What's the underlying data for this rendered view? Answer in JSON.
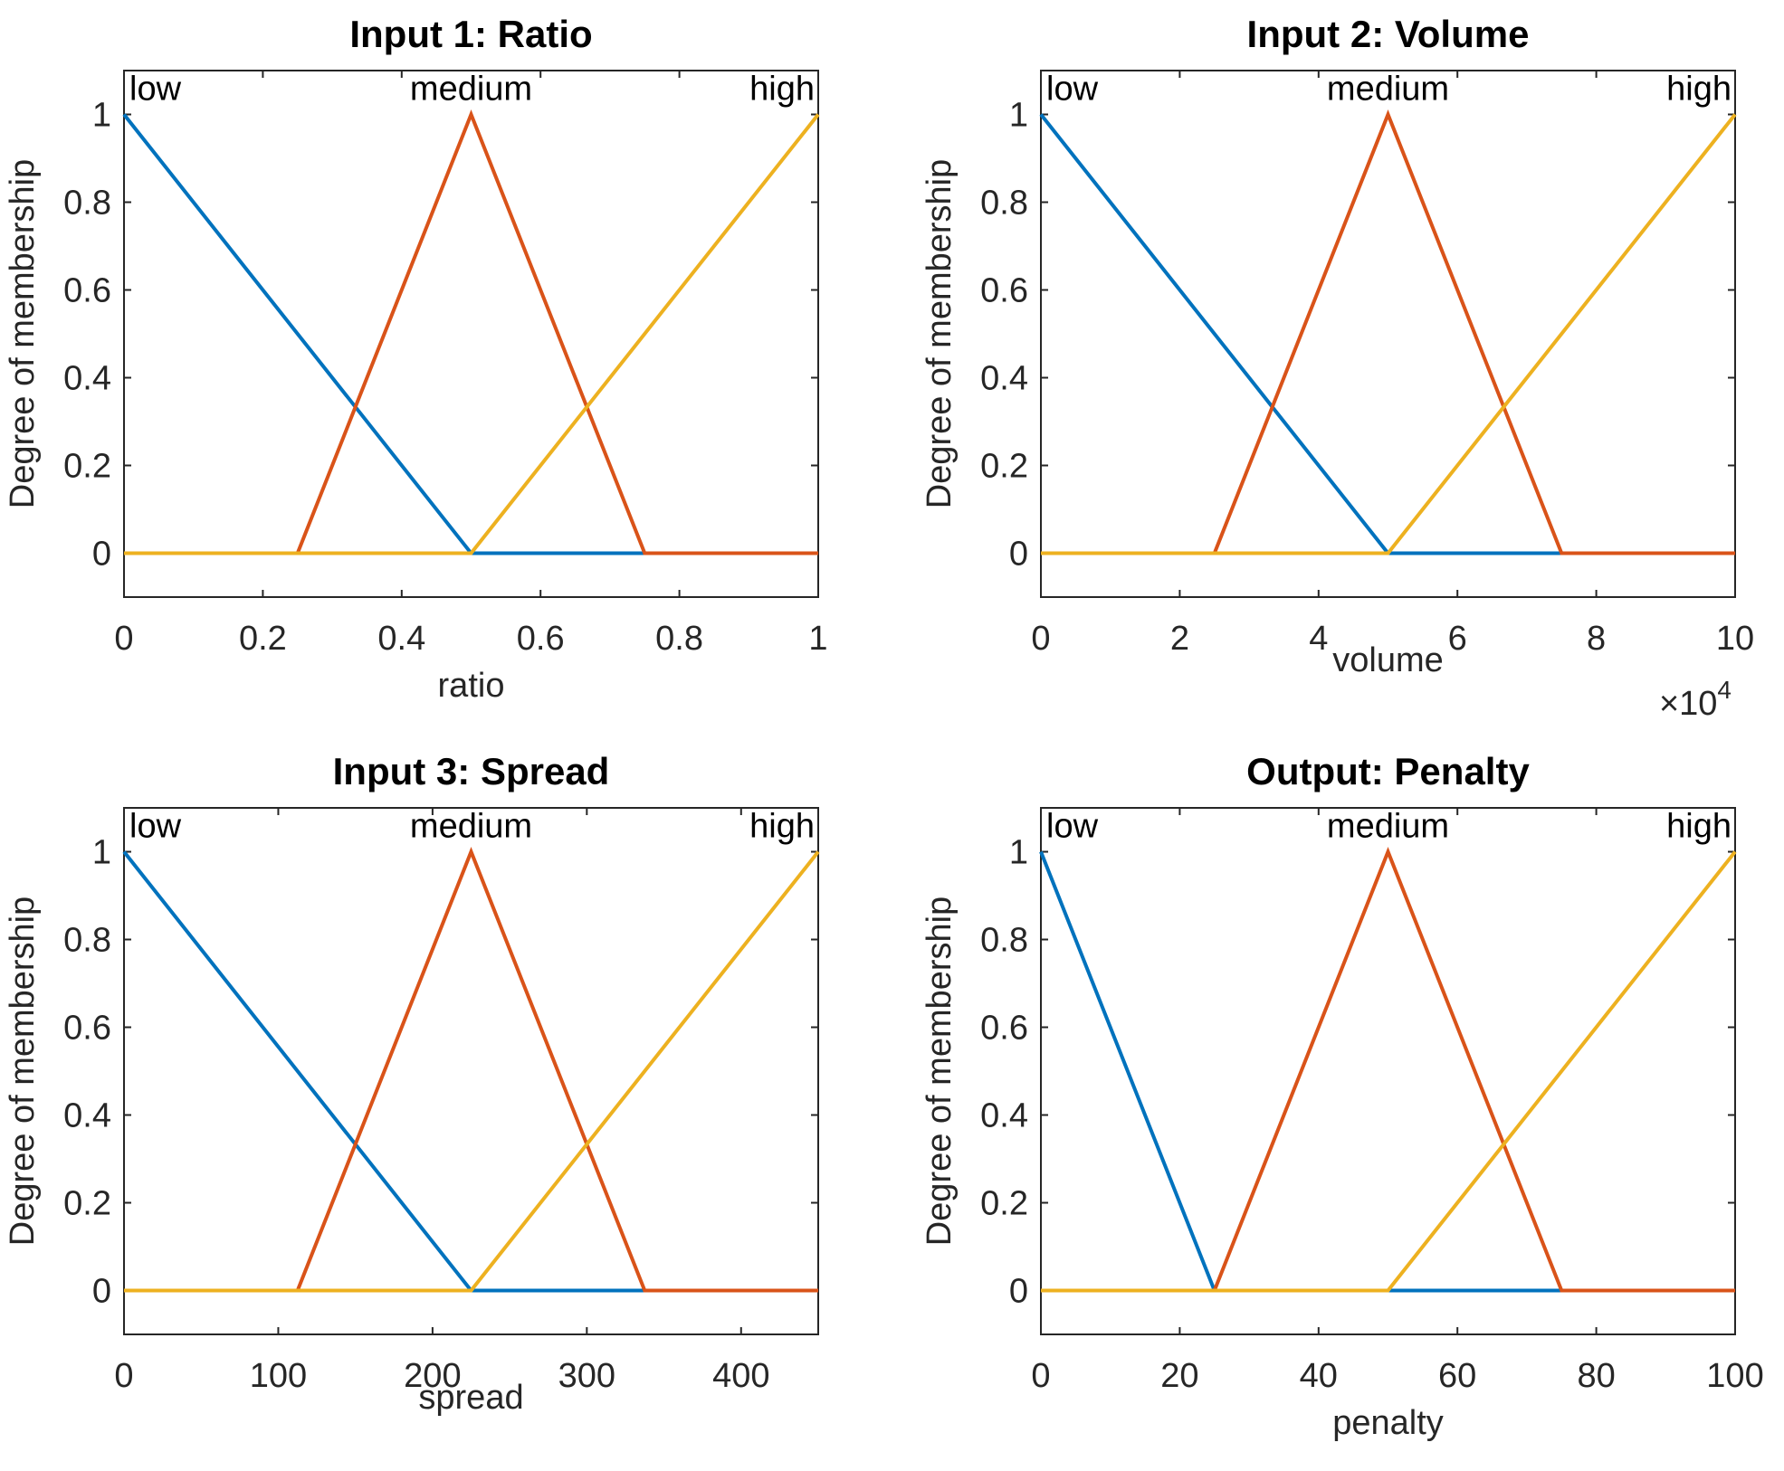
{
  "chart_data": [
    {
      "type": "line",
      "title": "Input 1: Ratio",
      "xlabel": "ratio",
      "ylabel": "Degree of membership",
      "xlim": [
        0,
        1
      ],
      "ylim": [
        -0.1,
        1.1
      ],
      "xticks": [
        0,
        0.2,
        0.4,
        0.6,
        0.8,
        1
      ],
      "xtick_labels": [
        "0",
        "0.2",
        "0.4",
        "0.6",
        "0.8",
        "1"
      ],
      "yticks": [
        0,
        0.2,
        0.4,
        0.6,
        0.8,
        1
      ],
      "ytick_labels": [
        "0",
        "0.2",
        "0.4",
        "0.6",
        "0.8",
        "1"
      ],
      "exponent_label": "",
      "series": [
        {
          "name": "low",
          "x": [
            0,
            0.5,
            1
          ],
          "y": [
            1,
            0,
            0
          ]
        },
        {
          "name": "medium",
          "x": [
            0,
            0.25,
            0.5,
            0.75,
            1
          ],
          "y": [
            0,
            0,
            1,
            0,
            0
          ]
        },
        {
          "name": "high",
          "x": [
            0,
            0.5,
            1
          ],
          "y": [
            0,
            0,
            1
          ]
        }
      ]
    },
    {
      "type": "line",
      "title": "Input 2: Volume",
      "xlabel": "volume",
      "ylabel": "Degree of membership",
      "xlim": [
        0,
        100000
      ],
      "ylim": [
        -0.1,
        1.1
      ],
      "xticks": [
        0,
        20000,
        40000,
        60000,
        80000,
        100000
      ],
      "xtick_labels": [
        "0",
        "2",
        "4",
        "6",
        "8",
        "10"
      ],
      "yticks": [
        0,
        0.2,
        0.4,
        0.6,
        0.8,
        1
      ],
      "ytick_labels": [
        "0",
        "0.2",
        "0.4",
        "0.6",
        "0.8",
        "1"
      ],
      "exponent_label": "×10",
      "exponent_power": "4",
      "series": [
        {
          "name": "low",
          "x": [
            0,
            50000,
            100000
          ],
          "y": [
            1,
            0,
            0
          ]
        },
        {
          "name": "medium",
          "x": [
            0,
            25000,
            50000,
            75000,
            100000
          ],
          "y": [
            0,
            0,
            1,
            0,
            0
          ]
        },
        {
          "name": "high",
          "x": [
            0,
            50000,
            100000
          ],
          "y": [
            0,
            0,
            1
          ]
        }
      ]
    },
    {
      "type": "line",
      "title": "Input 3: Spread",
      "xlabel": "spread",
      "ylabel": "Degree of membership",
      "xlim": [
        0,
        450
      ],
      "ylim": [
        -0.1,
        1.1
      ],
      "xticks": [
        0,
        100,
        200,
        300,
        400
      ],
      "xtick_labels": [
        "0",
        "100",
        "200",
        "300",
        "400"
      ],
      "yticks": [
        0,
        0.2,
        0.4,
        0.6,
        0.8,
        1
      ],
      "ytick_labels": [
        "0",
        "0.2",
        "0.4",
        "0.6",
        "0.8",
        "1"
      ],
      "exponent_label": "",
      "series": [
        {
          "name": "low",
          "x": [
            0,
            225,
            450
          ],
          "y": [
            1,
            0,
            0
          ]
        },
        {
          "name": "medium",
          "x": [
            0,
            112.5,
            225,
            337.5,
            450
          ],
          "y": [
            0,
            0,
            1,
            0,
            0
          ]
        },
        {
          "name": "high",
          "x": [
            0,
            225,
            450
          ],
          "y": [
            0,
            0,
            1
          ]
        }
      ]
    },
    {
      "type": "line",
      "title": "Output: Penalty",
      "xlabel": "penalty",
      "ylabel": "Degree of membership",
      "xlim": [
        0,
        100
      ],
      "ylim": [
        -0.1,
        1.1
      ],
      "xticks": [
        0,
        20,
        40,
        60,
        80,
        100
      ],
      "xtick_labels": [
        "0",
        "20",
        "40",
        "60",
        "80",
        "100"
      ],
      "yticks": [
        0,
        0.2,
        0.4,
        0.6,
        0.8,
        1
      ],
      "ytick_labels": [
        "0",
        "0.2",
        "0.4",
        "0.6",
        "0.8",
        "1"
      ],
      "exponent_label": "",
      "series": [
        {
          "name": "low",
          "x": [
            0,
            25,
            100
          ],
          "y": [
            1,
            0,
            0
          ]
        },
        {
          "name": "medium",
          "x": [
            0,
            25,
            50,
            75,
            100
          ],
          "y": [
            0,
            0,
            1,
            0,
            0
          ]
        },
        {
          "name": "high",
          "x": [
            0,
            50,
            100
          ],
          "y": [
            0,
            0,
            1
          ]
        }
      ]
    }
  ],
  "colors": {
    "low": "#0072bd",
    "medium": "#d95319",
    "high": "#edb120",
    "axis": "#262626"
  }
}
